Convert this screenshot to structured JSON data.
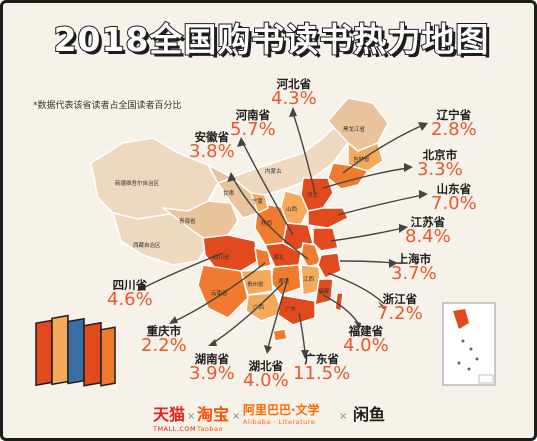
{
  "title": "2018全国购书读书热力地图",
  "note": "*数据代表该省读者占全国读者百分比",
  "colors": {
    "hot": "#e24a1e",
    "warm": "#f07a2e",
    "mid": "#f4a95b",
    "light": "#e8c39b",
    "pale": "#eed8bf",
    "accent": "#e8592c",
    "arrow": "#444444"
  },
  "provinces": [
    {
      "name": "河北省",
      "value": "4.3%"
    },
    {
      "name": "河南省",
      "value": "5.7%"
    },
    {
      "name": "辽宁省",
      "value": "2.8%"
    },
    {
      "name": "安徽省",
      "value": "3.8%"
    },
    {
      "name": "北京市",
      "value": "3.3%"
    },
    {
      "name": "山东省",
      "value": "7.0%"
    },
    {
      "name": "江苏省",
      "value": "8.4%"
    },
    {
      "name": "上海市",
      "value": "3.7%"
    },
    {
      "name": "四川省",
      "value": "4.6%"
    },
    {
      "name": "浙江省",
      "value": "7.2%"
    },
    {
      "name": "重庆市",
      "value": "2.2%"
    },
    {
      "name": "福建省",
      "value": "4.0%"
    },
    {
      "name": "湖南省",
      "value": "3.9%"
    },
    {
      "name": "湖北省",
      "value": "4.0%"
    },
    {
      "name": "广东省",
      "value": "11.5%"
    }
  ],
  "map_labels": [
    "新疆维吾尔自治区",
    "西藏自治区",
    "青海省",
    "内蒙古",
    "黑龙江省",
    "吉林省",
    "甘肃",
    "四川省",
    "云南省",
    "贵州省",
    "广西",
    "湖南",
    "湖北",
    "陕西",
    "山西",
    "宁夏",
    "河北",
    "江西",
    "福建",
    "广东"
  ],
  "logos": [
    {
      "main": "天猫",
      "sub": "TMALL.COM",
      "color": "#e2231a"
    },
    {
      "main": "淘宝",
      "sub": "Taobao",
      "color": "#ff5000"
    },
    {
      "main": "阿里巴巴·文学",
      "sub": "Alibaba · Literature",
      "color": "#ff6a00"
    },
    {
      "main": "闲鱼",
      "sub": "",
      "color": "#1d1d1d"
    }
  ]
}
